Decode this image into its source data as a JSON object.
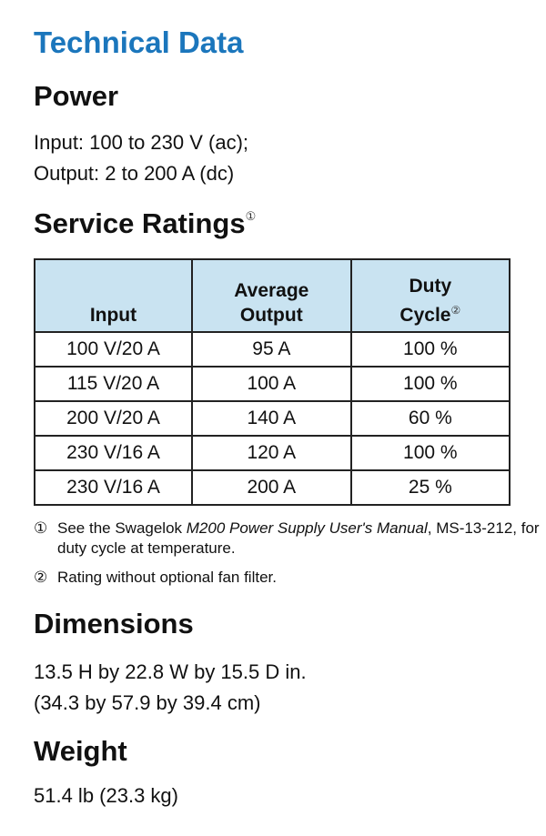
{
  "title": "Technical Data",
  "power": {
    "heading": "Power",
    "lines": [
      "Input: 100 to 230 V (ac);",
      "Output: 2 to 200 A (dc)"
    ]
  },
  "service_ratings": {
    "heading": "Service Ratings",
    "heading_note": "①",
    "table": {
      "header": [
        {
          "lines": [
            "Input"
          ]
        },
        {
          "lines": [
            "Average",
            "Output"
          ]
        },
        {
          "lines": [
            "Duty",
            "Cycle"
          ],
          "note": "②"
        }
      ],
      "rows": [
        [
          "100 V/20 A",
          "95 A",
          "100 %"
        ],
        [
          "115 V/20 A",
          "100 A",
          "100 %"
        ],
        [
          "200 V/20 A",
          "140 A",
          "60 %"
        ],
        [
          "230 V/16 A",
          "120 A",
          "100 %"
        ],
        [
          "230 V/16 A",
          "200 A",
          "25 %"
        ]
      ]
    },
    "footnotes": [
      {
        "marker": "①",
        "parts": [
          {
            "text": "See the Swagelok "
          },
          {
            "text": "M200 Power Supply User's Manual",
            "italic": true
          },
          {
            "text": ", MS-13-212, for duty cycle at temperature."
          }
        ]
      },
      {
        "marker": "②",
        "parts": [
          {
            "text": "Rating without optional fan filter."
          }
        ]
      }
    ]
  },
  "dimensions": {
    "heading": "Dimensions",
    "lines": [
      "13.5 H by 22.8 W by 15.5 D in.",
      "(34.3 by 57.9 by 39.4 cm)"
    ]
  },
  "weight": {
    "heading": "Weight",
    "lines": [
      "51.4 lb (23.3 kg)"
    ]
  }
}
